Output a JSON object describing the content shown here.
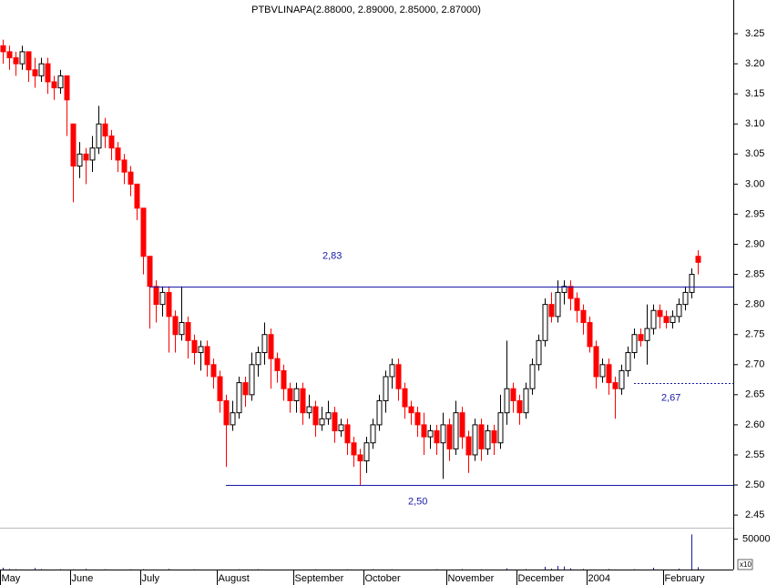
{
  "chart_data": {
    "type": "candlestick",
    "title": "PTBVLINAPA(2.88000, 2.89000, 2.85000, 2.87000)",
    "up_color": "#ffffff",
    "down_color": "#ff0000",
    "line_color": "#1a1aa8",
    "ylim": [
      2.429,
      3.306
    ],
    "yticks": [
      {
        "value": 2.45,
        "label": "2.45"
      },
      {
        "value": 2.5,
        "label": "2.50"
      },
      2.55,
      {
        "value": 2.6,
        "label": "2.60"
      },
      2.65,
      {
        "value": 2.7,
        "label": "2.70"
      },
      2.75,
      {
        "value": 2.8,
        "label": "2.80"
      },
      2.85,
      {
        "value": 2.9,
        "label": "2.90"
      },
      2.95,
      {
        "value": 3.0,
        "label": "3.00"
      },
      3.05,
      {
        "value": 3.1,
        "label": "3.10"
      },
      3.15,
      {
        "value": 3.2,
        "label": "3.20"
      },
      3.25
    ],
    "xticks": [
      {
        "value": 0,
        "label": "May"
      },
      {
        "value": 11,
        "label": "June"
      },
      {
        "value": 22,
        "label": "July"
      },
      {
        "value": 34,
        "label": "August"
      },
      {
        "value": 46,
        "label": "September"
      },
      {
        "value": 57,
        "label": "October"
      },
      {
        "value": 70,
        "label": "November"
      },
      {
        "value": 81,
        "label": "December"
      },
      {
        "value": 92,
        "label": "2004"
      },
      {
        "value": 104,
        "label": "February"
      }
    ],
    "candles": [
      [
        3.23,
        3.24,
        3.2,
        3.22
      ],
      [
        3.22,
        3.23,
        3.19,
        3.21
      ],
      [
        3.21,
        3.22,
        3.18,
        3.2
      ],
      [
        3.2,
        3.23,
        3.19,
        3.22
      ],
      [
        3.22,
        3.22,
        3.17,
        3.19
      ],
      [
        3.19,
        3.21,
        3.16,
        3.18
      ],
      [
        3.18,
        3.21,
        3.17,
        3.2
      ],
      [
        3.2,
        3.21,
        3.15,
        3.17
      ],
      [
        3.17,
        3.18,
        3.14,
        3.16
      ],
      [
        3.16,
        3.19,
        3.15,
        3.18
      ],
      [
        3.18,
        3.18,
        3.08,
        3.14
      ],
      [
        3.1,
        3.1,
        2.97,
        3.03
      ],
      [
        3.03,
        3.07,
        3.01,
        3.05
      ],
      [
        3.05,
        3.06,
        3.0,
        3.04
      ],
      [
        3.04,
        3.08,
        3.02,
        3.06
      ],
      [
        3.06,
        3.13,
        3.05,
        3.1
      ],
      [
        3.1,
        3.11,
        3.06,
        3.08
      ],
      [
        3.08,
        3.09,
        3.04,
        3.06
      ],
      [
        3.06,
        3.07,
        3.02,
        3.04
      ],
      [
        3.04,
        3.05,
        3.0,
        3.02
      ],
      [
        3.02,
        3.03,
        2.98,
        3.0
      ],
      [
        3.0,
        3.0,
        2.94,
        2.96
      ],
      [
        2.96,
        2.96,
        2.85,
        2.88
      ],
      [
        2.88,
        2.88,
        2.76,
        2.83
      ],
      [
        2.83,
        2.84,
        2.77,
        2.8
      ],
      [
        2.8,
        2.83,
        2.78,
        2.82
      ],
      [
        2.82,
        2.83,
        2.72,
        2.78
      ],
      [
        2.78,
        2.79,
        2.72,
        2.75
      ],
      [
        2.75,
        2.83,
        2.74,
        2.77
      ],
      [
        2.77,
        2.78,
        2.71,
        2.74
      ],
      [
        2.74,
        2.75,
        2.7,
        2.72
      ],
      [
        2.72,
        2.74,
        2.69,
        2.73
      ],
      [
        2.73,
        2.74,
        2.68,
        2.7
      ],
      [
        2.7,
        2.71,
        2.66,
        2.68
      ],
      [
        2.68,
        2.69,
        2.62,
        2.64
      ],
      [
        2.64,
        2.65,
        2.53,
        2.6
      ],
      [
        2.6,
        2.64,
        2.59,
        2.62
      ],
      [
        2.62,
        2.68,
        2.61,
        2.67
      ],
      [
        2.67,
        2.68,
        2.63,
        2.65
      ],
      [
        2.65,
        2.72,
        2.64,
        2.7
      ],
      [
        2.7,
        2.73,
        2.68,
        2.72
      ],
      [
        2.72,
        2.77,
        2.7,
        2.75
      ],
      [
        2.75,
        2.76,
        2.66,
        2.71
      ],
      [
        2.71,
        2.72,
        2.67,
        2.69
      ],
      [
        2.69,
        2.7,
        2.64,
        2.66
      ],
      [
        2.66,
        2.67,
        2.62,
        2.64
      ],
      [
        2.64,
        2.67,
        2.62,
        2.66
      ],
      [
        2.66,
        2.67,
        2.6,
        2.62
      ],
      [
        2.62,
        2.65,
        2.61,
        2.63
      ],
      [
        2.63,
        2.64,
        2.58,
        2.6
      ],
      [
        2.6,
        2.63,
        2.59,
        2.61
      ],
      [
        2.61,
        2.64,
        2.6,
        2.62
      ],
      [
        2.62,
        2.63,
        2.57,
        2.59
      ],
      [
        2.59,
        2.61,
        2.58,
        2.6
      ],
      [
        2.6,
        2.61,
        2.55,
        2.57
      ],
      [
        2.57,
        2.58,
        2.53,
        2.55
      ],
      [
        2.55,
        2.56,
        2.5,
        2.54
      ],
      [
        2.54,
        2.58,
        2.52,
        2.57
      ],
      [
        2.57,
        2.61,
        2.56,
        2.6
      ],
      [
        2.6,
        2.65,
        2.59,
        2.64
      ],
      [
        2.64,
        2.69,
        2.62,
        2.68
      ],
      [
        2.68,
        2.71,
        2.66,
        2.7
      ],
      [
        2.7,
        2.71,
        2.64,
        2.66
      ],
      [
        2.66,
        2.67,
        2.61,
        2.63
      ],
      [
        2.63,
        2.64,
        2.6,
        2.62
      ],
      [
        2.62,
        2.63,
        2.58,
        2.6
      ],
      [
        2.6,
        2.62,
        2.55,
        2.58
      ],
      [
        2.58,
        2.6,
        2.56,
        2.59
      ],
      [
        2.59,
        2.6,
        2.55,
        2.57
      ],
      [
        2.57,
        2.62,
        2.51,
        2.6
      ],
      [
        2.6,
        2.61,
        2.54,
        2.56
      ],
      [
        2.56,
        2.64,
        2.55,
        2.62
      ],
      [
        2.62,
        2.63,
        2.56,
        2.58
      ],
      [
        2.58,
        2.59,
        2.52,
        2.55
      ],
      [
        2.55,
        2.61,
        2.54,
        2.6
      ],
      [
        2.6,
        2.61,
        2.54,
        2.56
      ],
      [
        2.56,
        2.6,
        2.55,
        2.59
      ],
      [
        2.59,
        2.6,
        2.55,
        2.57
      ],
      [
        2.57,
        2.65,
        2.56,
        2.62
      ],
      [
        2.62,
        2.74,
        2.6,
        2.66
      ],
      [
        2.66,
        2.67,
        2.62,
        2.64
      ],
      [
        2.64,
        2.65,
        2.6,
        2.62
      ],
      [
        2.62,
        2.67,
        2.61,
        2.66
      ],
      [
        2.66,
        2.71,
        2.65,
        2.7
      ],
      [
        2.7,
        2.75,
        2.69,
        2.74
      ],
      [
        2.74,
        2.81,
        2.73,
        2.8
      ],
      [
        2.8,
        2.82,
        2.77,
        2.78
      ],
      [
        2.78,
        2.84,
        2.77,
        2.82
      ],
      [
        2.82,
        2.84,
        2.8,
        2.83
      ],
      [
        2.83,
        2.84,
        2.79,
        2.81
      ],
      [
        2.81,
        2.82,
        2.77,
        2.79
      ],
      [
        2.79,
        2.8,
        2.75,
        2.77
      ],
      [
        2.77,
        2.78,
        2.72,
        2.73
      ],
      [
        2.73,
        2.74,
        2.66,
        2.68
      ],
      [
        2.68,
        2.71,
        2.67,
        2.7
      ],
      [
        2.7,
        2.71,
        2.65,
        2.67
      ],
      [
        2.67,
        2.68,
        2.61,
        2.66
      ],
      [
        2.66,
        2.7,
        2.65,
        2.69
      ],
      [
        2.69,
        2.73,
        2.68,
        2.72
      ],
      [
        2.72,
        2.76,
        2.71,
        2.75
      ],
      [
        2.75,
        2.76,
        2.73,
        2.74
      ],
      [
        2.74,
        2.8,
        2.7,
        2.76
      ],
      [
        2.76,
        2.8,
        2.75,
        2.79
      ],
      [
        2.79,
        2.8,
        2.76,
        2.78
      ],
      [
        2.78,
        2.79,
        2.76,
        2.77
      ],
      [
        2.77,
        2.79,
        2.76,
        2.78
      ],
      [
        2.78,
        2.81,
        2.77,
        2.8
      ],
      [
        2.8,
        2.83,
        2.79,
        2.82
      ],
      [
        2.82,
        2.86,
        2.81,
        2.85
      ],
      [
        2.88,
        2.89,
        2.85,
        2.87
      ]
    ],
    "volume": [
      3000,
      1000,
      500,
      0,
      0,
      2500,
      800,
      0,
      0,
      600,
      0,
      400,
      0,
      1200,
      0,
      0,
      500,
      0,
      0,
      0,
      300,
      0,
      600,
      0,
      0,
      0,
      900,
      0,
      0,
      0,
      400,
      0,
      0,
      0,
      0,
      0,
      0,
      300,
      0,
      0,
      500,
      0,
      0,
      0,
      0,
      0,
      0,
      0,
      0,
      300,
      0,
      0,
      0,
      0,
      400,
      0,
      0,
      0,
      600,
      0,
      0,
      300,
      0,
      0,
      0,
      0,
      0,
      0,
      500,
      0,
      0,
      0,
      800,
      0,
      0,
      300,
      0,
      0,
      0,
      2000,
      0,
      0,
      700,
      0,
      0,
      4500,
      1500,
      6000,
      5000,
      2000,
      0,
      1000,
      0,
      0,
      0,
      800,
      0,
      0,
      0,
      600,
      0,
      0,
      3000,
      0,
      0,
      0,
      1500,
      0,
      58000,
      4000
    ],
    "vlim": [
      0,
      66000
    ],
    "vticks": [
      50000
    ],
    "volume_multiplier_label": "x10",
    "hlines": [
      {
        "value": 2.83,
        "label": "2,83",
        "from": 23
      },
      {
        "value": 2.5,
        "label": "2,50",
        "from": 35
      },
      {
        "value": 2.67,
        "label": "2,67",
        "from": 99,
        "dashed": true
      }
    ]
  }
}
